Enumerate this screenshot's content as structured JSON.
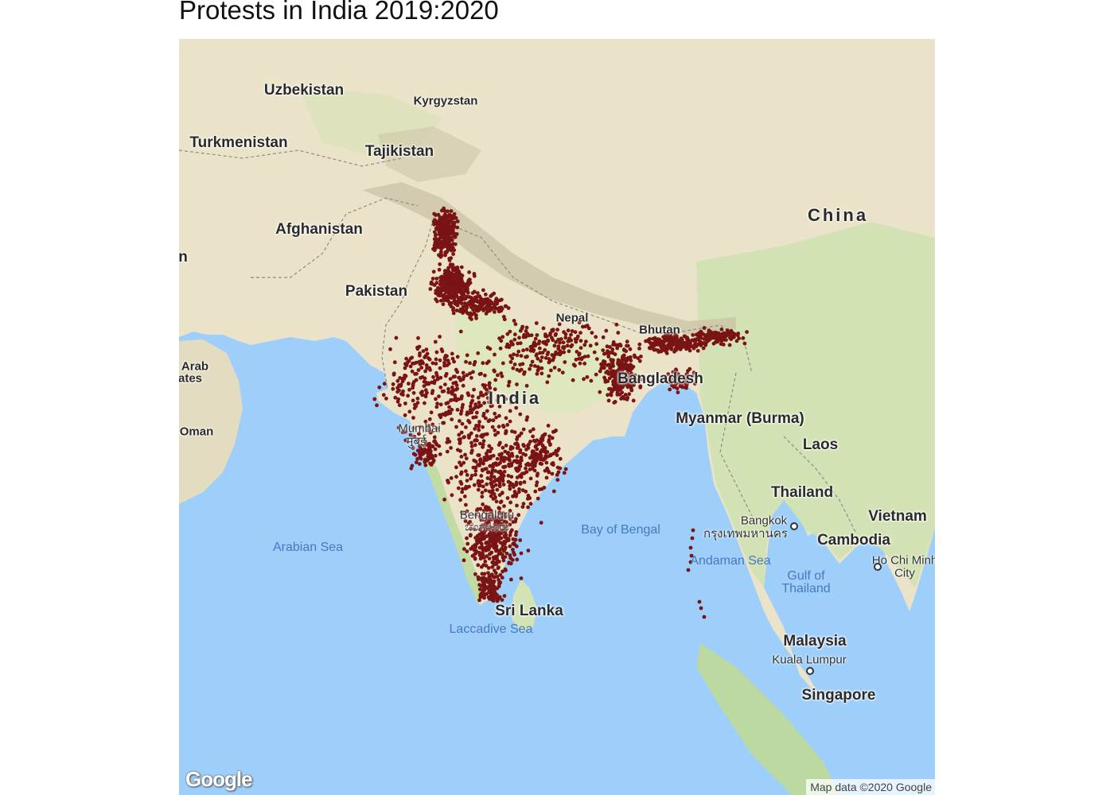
{
  "title": "Protests in India 2019:2020",
  "map": {
    "countries": [
      "Uzbekistan",
      "Kyrgyzstan",
      "Turkmenistan",
      "Tajikistan",
      "Afghanistan",
      "Pakistan",
      "Nepal",
      "Bhutan",
      "Bangladesh",
      "India",
      "China",
      "Myanmar (Burma)",
      "Laos",
      "Thailand",
      "Vietnam",
      "Cambodia",
      "Malaysia",
      "Sri Lanka",
      "Singapore"
    ],
    "country_fragments": [
      "Arab",
      "ates",
      "Oman",
      "n"
    ],
    "seas": [
      "Arabian Sea",
      "Bay of Bengal",
      "Andaman Sea",
      "Gulf of Thailand",
      "Laccadive Sea"
    ],
    "cities": [
      "Mumbai",
      "मुंबई",
      "Bengaluru",
      "ಬೆಂಗಳೂರು",
      "Bangkok",
      "กรุงเทพมหานคร",
      "Ho Chi Minh City",
      "Kuala Lumpur"
    ],
    "attribution": "Map data ©2020 Google",
    "provider_logo": "Google",
    "point_color": "#7a1414"
  }
}
